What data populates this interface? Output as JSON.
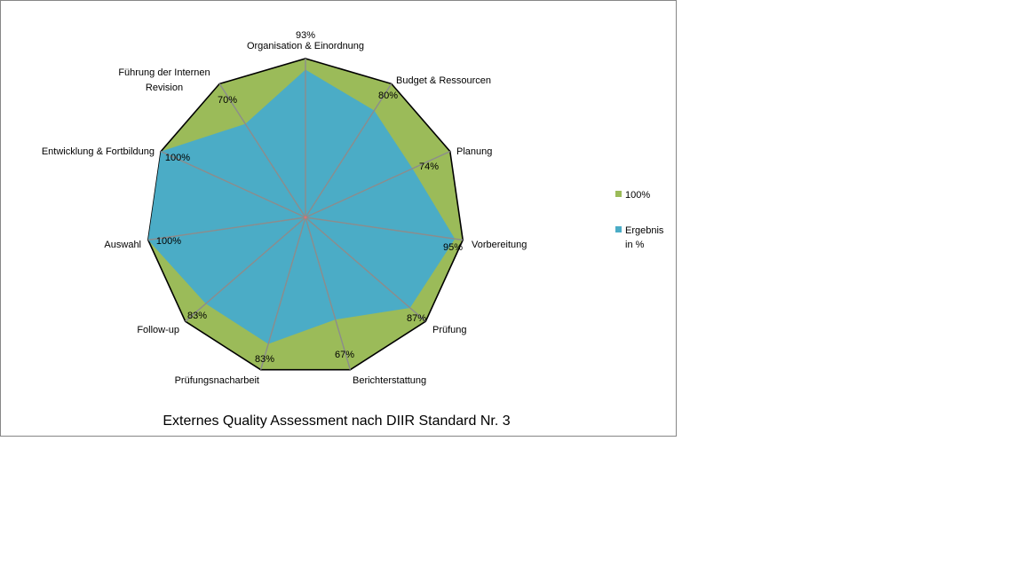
{
  "chart_data": {
    "type": "radar",
    "title": "Externes Quality Assessment nach DIIR Standard Nr. 3",
    "categories": [
      "Organisation & Einordnung",
      "Budget & Ressourcen",
      "Planung",
      "Vorbereitung",
      "Prüfung",
      "Berichterstattung",
      "Prüfungsnacharbeit",
      "Follow-up",
      "Auswahl",
      "Entwicklung & Fortbildung",
      "Führung der Internen Revision"
    ],
    "series": [
      {
        "name": "100%",
        "color": "#9BBB59",
        "values": [
          100,
          100,
          100,
          100,
          100,
          100,
          100,
          100,
          100,
          100,
          100
        ]
      },
      {
        "name": "Ergebnis in %",
        "color": "#4BACC6",
        "values": [
          93,
          80,
          74,
          95,
          87,
          67,
          83,
          83,
          100,
          100,
          70
        ]
      }
    ],
    "data_labels": [
      "93%",
      "80%",
      "74%",
      "95%",
      "87%",
      "67%",
      "83%",
      "83%",
      "100%",
      "100%",
      "70%"
    ],
    "ylim": [
      0,
      100
    ],
    "grid": false,
    "legend_position": "right"
  }
}
